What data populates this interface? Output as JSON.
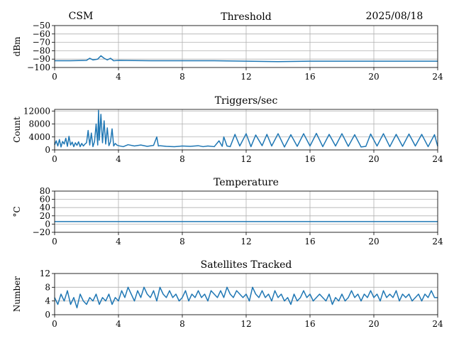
{
  "header": {
    "left": "CSM",
    "right": "2025/08/18"
  },
  "colors": {
    "line": "#1f77b4",
    "grid": "#b0b0b0",
    "axis": "#000000"
  },
  "chart_data": [
    {
      "type": "line",
      "title": "Threshold",
      "xlabel": "",
      "ylabel": "dBm",
      "xlim": [
        0,
        24
      ],
      "ylim": [
        -100,
        -50
      ],
      "xticks": [
        0,
        4,
        8,
        12,
        16,
        20,
        24
      ],
      "yticks": [
        -100,
        -90,
        -80,
        -70,
        -60,
        -50
      ],
      "ytick_labels": [
        "−100",
        "−90",
        "−80",
        "−70",
        "−60",
        "−50"
      ],
      "grid": true,
      "series": [
        {
          "x": [
            0,
            1,
            2,
            2.2,
            2.4,
            2.7,
            2.9,
            3.1,
            3.3,
            3.5,
            3.7,
            4,
            6,
            8,
            10,
            12,
            14,
            16,
            18,
            20,
            22,
            24
          ],
          "y": [
            -92,
            -92,
            -91.5,
            -89,
            -91,
            -90,
            -86,
            -89,
            -91,
            -89,
            -92,
            -91.5,
            -92,
            -92,
            -92,
            -92.5,
            -93,
            -92.5,
            -92.5,
            -92.5,
            -92.5,
            -92.5
          ]
        }
      ]
    },
    {
      "type": "line",
      "title": "Triggers/sec",
      "xlabel": "",
      "ylabel": "Count",
      "xlim": [
        0,
        24
      ],
      "ylim": [
        0,
        12500
      ],
      "xticks": [
        0,
        4,
        8,
        12,
        16,
        20,
        24
      ],
      "yticks": [
        0,
        4000,
        8000,
        12000
      ],
      "ytick_labels": [
        "0",
        "4000",
        "8000",
        "12000"
      ],
      "grid": true,
      "series": [
        {
          "x": [
            0,
            0.1,
            0.2,
            0.3,
            0.4,
            0.5,
            0.6,
            0.7,
            0.8,
            0.9,
            1.0,
            1.1,
            1.2,
            1.3,
            1.4,
            1.5,
            1.6,
            1.7,
            1.8,
            1.9,
            2.0,
            2.1,
            2.2,
            2.3,
            2.4,
            2.5,
            2.6,
            2.7,
            2.75,
            2.8,
            2.9,
            3.0,
            3.1,
            3.2,
            3.3,
            3.4,
            3.5,
            3.6,
            3.7,
            3.8,
            3.9,
            4.0,
            4.3,
            4.6,
            5.0,
            5.4,
            5.8,
            6.2,
            6.4,
            6.5,
            6.6,
            7.0,
            7.5,
            8.0,
            8.5,
            9.0,
            9.3,
            9.6,
            10.0,
            10.3,
            10.5,
            10.6,
            10.8,
            11.0,
            11.3,
            11.6,
            12.0,
            12.3,
            12.6,
            13.0,
            13.3,
            13.6,
            14.0,
            14.4,
            14.8,
            15.2,
            15.6,
            16.0,
            16.4,
            16.8,
            17.2,
            17.6,
            18.0,
            18.4,
            18.8,
            19.2,
            19.5,
            19.8,
            20.2,
            20.6,
            21.0,
            21.4,
            21.8,
            22.2,
            22.6,
            23.0,
            23.4,
            23.8,
            24.0
          ],
          "y": [
            1500,
            2800,
            1200,
            3200,
            900,
            2600,
            1800,
            3600,
            1100,
            4200,
            1500,
            2400,
            1000,
            2200,
            1400,
            2500,
            1000,
            2000,
            1200,
            1800,
            2200,
            6000,
            1500,
            5200,
            1000,
            2600,
            8000,
            1500,
            12200,
            3000,
            11000,
            2200,
            9000,
            1800,
            6800,
            1300,
            2500,
            6500,
            1200,
            2000,
            1500,
            1300,
            1000,
            1600,
            1200,
            1500,
            1100,
            1400,
            4000,
            1200,
            1300,
            1100,
            1000,
            1200,
            1100,
            1300,
            1000,
            1200,
            1000,
            2800,
            1100,
            4000,
            1200,
            1000,
            4800,
            1200,
            5000,
            1000,
            4600,
            1300,
            4800,
            1200,
            5000,
            900,
            4700,
            1100,
            5000,
            1200,
            5100,
            1000,
            4800,
            1200,
            5000,
            1100,
            4700,
            900,
            1100,
            4900,
            1200,
            5000,
            1000,
            4800,
            1100,
            4900,
            1200,
            4800,
            1000,
            4700,
            1100
          ]
        }
      ]
    },
    {
      "type": "line",
      "title": "Temperature",
      "xlabel": "",
      "ylabel": "°C",
      "xlim": [
        0,
        24
      ],
      "ylim": [
        -20,
        80
      ],
      "xticks": [
        0,
        4,
        8,
        12,
        16,
        20,
        24
      ],
      "yticks": [
        -20,
        0,
        20,
        40,
        60,
        80
      ],
      "ytick_labels": [
        "−20",
        "0",
        "20",
        "40",
        "60",
        "80"
      ],
      "grid": true,
      "series": [
        {
          "x": [
            0,
            4,
            8,
            12,
            16,
            20,
            24
          ],
          "y": [
            6,
            6,
            6,
            6,
            6,
            6,
            6
          ]
        }
      ]
    },
    {
      "type": "line",
      "title": "Satellites Tracked",
      "xlabel": "",
      "ylabel": "Number",
      "xlim": [
        0,
        24
      ],
      "ylim": [
        0,
        12
      ],
      "xticks": [
        0,
        4,
        8,
        12,
        16,
        20,
        24
      ],
      "yticks": [
        0,
        4,
        8,
        12
      ],
      "ytick_labels": [
        "0",
        "4",
        "8",
        "12"
      ],
      "grid": true,
      "series": [
        {
          "x": [
            0,
            0.2,
            0.4,
            0.6,
            0.8,
            1.0,
            1.2,
            1.4,
            1.6,
            1.8,
            2.0,
            2.2,
            2.4,
            2.6,
            2.8,
            3.0,
            3.2,
            3.4,
            3.6,
            3.8,
            4.0,
            4.2,
            4.4,
            4.6,
            4.8,
            5.0,
            5.2,
            5.4,
            5.6,
            5.8,
            6.0,
            6.2,
            6.4,
            6.6,
            6.8,
            7.0,
            7.2,
            7.4,
            7.6,
            7.8,
            8.0,
            8.2,
            8.4,
            8.6,
            8.8,
            9.0,
            9.2,
            9.4,
            9.6,
            9.8,
            10.0,
            10.2,
            10.4,
            10.6,
            10.8,
            11.0,
            11.2,
            11.4,
            11.6,
            11.8,
            12.0,
            12.2,
            12.4,
            12.6,
            12.8,
            13.0,
            13.2,
            13.4,
            13.6,
            13.8,
            14.0,
            14.2,
            14.4,
            14.6,
            14.8,
            15.0,
            15.2,
            15.4,
            15.6,
            15.8,
            16.0,
            16.2,
            16.4,
            16.6,
            16.8,
            17.0,
            17.2,
            17.4,
            17.6,
            17.8,
            18.0,
            18.2,
            18.4,
            18.6,
            18.8,
            19.0,
            19.2,
            19.4,
            19.6,
            19.8,
            20.0,
            20.2,
            20.4,
            20.6,
            20.8,
            21.0,
            21.2,
            21.4,
            21.6,
            21.8,
            22.0,
            22.2,
            22.4,
            22.6,
            22.8,
            23.0,
            23.2,
            23.4,
            23.6,
            23.8,
            24.0
          ],
          "y": [
            5,
            3,
            6,
            4,
            7,
            3,
            5,
            2,
            6,
            4,
            3,
            5,
            4,
            6,
            3,
            5,
            4,
            6,
            3,
            5,
            4,
            7,
            5,
            8,
            6,
            4,
            7,
            5,
            8,
            6,
            5,
            7,
            4,
            8,
            6,
            5,
            7,
            5,
            6,
            4,
            5,
            7,
            4,
            6,
            5,
            7,
            5,
            6,
            4,
            7,
            6,
            5,
            7,
            5,
            8,
            6,
            5,
            7,
            6,
            5,
            6,
            4,
            8,
            6,
            5,
            7,
            5,
            6,
            4,
            7,
            5,
            6,
            4,
            5,
            3,
            6,
            4,
            5,
            7,
            5,
            6,
            4,
            5,
            6,
            5,
            4,
            6,
            3,
            5,
            4,
            6,
            4,
            5,
            7,
            5,
            6,
            4,
            6,
            5,
            7,
            5,
            6,
            4,
            7,
            5,
            6,
            5,
            7,
            4,
            6,
            5,
            6,
            4,
            5,
            6,
            4,
            6,
            5,
            7,
            5,
            5
          ]
        }
      ]
    }
  ]
}
